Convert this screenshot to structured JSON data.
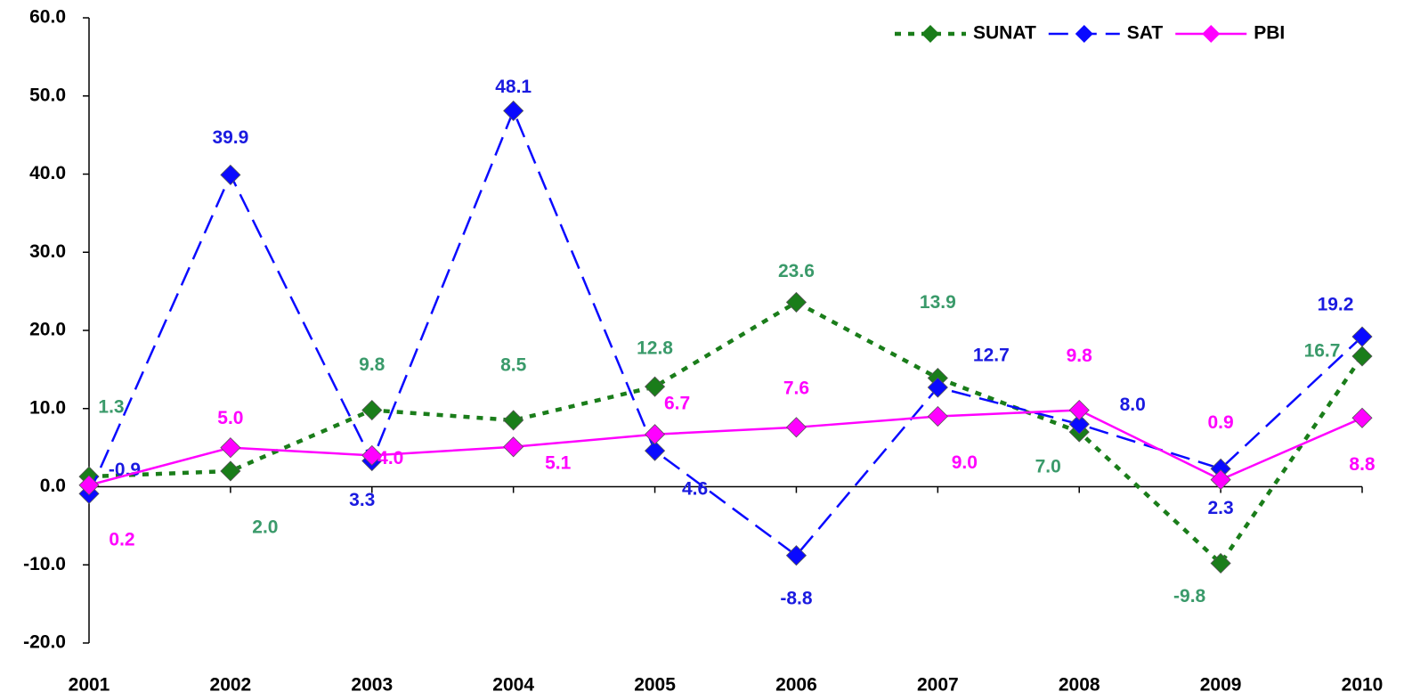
{
  "chart_data": {
    "type": "line",
    "categories": [
      "2001",
      "2002",
      "2003",
      "2004",
      "2005",
      "2006",
      "2007",
      "2008",
      "2009",
      "2010"
    ],
    "series": [
      {
        "name": "SUNAT",
        "color": "#1a7d1a",
        "label_color": "#3a9a6a",
        "dash": "dotted",
        "values": [
          1.3,
          2.0,
          9.8,
          8.5,
          12.8,
          23.6,
          13.9,
          7.0,
          -9.8,
          16.7
        ],
        "value_labels": [
          "1.3",
          "2.0",
          "9.8",
          "8.5",
          "12.8",
          "23.6",
          "13.9",
          "7.0",
          "-9.8",
          "16.7"
        ]
      },
      {
        "name": "SAT",
        "color": "#0a0aff",
        "label_color": "#1a1ae0",
        "dash": "dashed",
        "values": [
          -0.9,
          39.9,
          3.3,
          48.1,
          4.6,
          -8.8,
          12.7,
          8.0,
          2.3,
          19.2
        ],
        "value_labels": [
          "-0.9",
          "39.9",
          "3.3",
          "48.1",
          "4.6",
          "-8.8",
          "12.7",
          "8.0",
          "2.3",
          "19.2"
        ]
      },
      {
        "name": "PBI",
        "color": "#ff00ff",
        "label_color": "#ff00ff",
        "dash": "solid",
        "values": [
          0.2,
          5.0,
          4.0,
          5.1,
          6.7,
          7.6,
          9.0,
          9.8,
          0.9,
          8.8
        ],
        "value_labels": [
          "0.2",
          "5.0",
          "4.0",
          "5.1",
          "6.7",
          "7.6",
          "9.0",
          "9.8",
          "0.9",
          "8.8"
        ]
      }
    ],
    "ylim": [
      -20,
      60
    ],
    "yticks": [
      {
        "value": -20,
        "label": "-20.0"
      },
      {
        "value": -10,
        "label": "-10.0"
      },
      {
        "value": 0,
        "label": "0.0"
      },
      {
        "value": 10,
        "label": "10.0"
      },
      {
        "value": 20,
        "label": "20.0"
      },
      {
        "value": 30,
        "label": "30.0"
      },
      {
        "value": 40,
        "label": "40.0"
      },
      {
        "value": 50,
        "label": "50.0"
      },
      {
        "value": 60,
        "label": "60.0"
      }
    ],
    "grid": false,
    "legend": "top-right"
  }
}
